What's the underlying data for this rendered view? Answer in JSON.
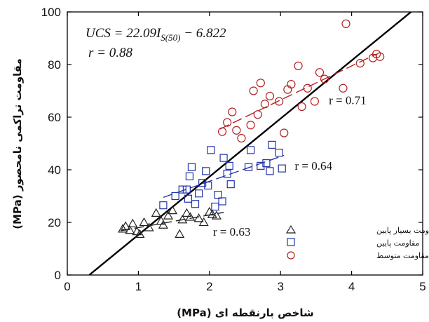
{
  "chart_data": {
    "type": "scatter",
    "xlabel": "شاخص بارنقطه ای (MPa)",
    "ylabel": "مقاومت تراکمی نامحصور (MPa)",
    "xlim": [
      0,
      5
    ],
    "ylim": [
      0,
      100
    ],
    "xticks": [
      "0",
      "1",
      "2",
      "3",
      "4",
      "5"
    ],
    "yticks": [
      "0",
      "20",
      "40",
      "60",
      "80",
      "100"
    ],
    "grid": false,
    "legend_position": "bottom-right",
    "annotation": {
      "equation_lhs": "UCS = 22.09I",
      "equation_sub": "S(50)",
      "equation_rhs": " − 6.822",
      "r_overall": "r = 0.88"
    },
    "overall_fit": {
      "slope": 22.09,
      "intercept": -6.822,
      "x_range": [
        0.31,
        4.85
      ]
    },
    "series": [
      {
        "name": "مقاومت بسیار پایین",
        "marker": "triangle",
        "color": "#222222",
        "fit_color": "#222222",
        "r_label": "r = 0.63",
        "fit": {
          "x": [
            0.75,
            2.2
          ],
          "y": [
            16.8,
            23.8
          ]
        },
        "label_pos": {
          "x": 2.05,
          "y": 15
        },
        "points": [
          [
            0.78,
            17.5
          ],
          [
            0.82,
            18.5
          ],
          [
            0.88,
            17.0
          ],
          [
            0.92,
            19.5
          ],
          [
            0.98,
            16.5
          ],
          [
            1.02,
            15.5
          ],
          [
            1.08,
            20.0
          ],
          [
            1.15,
            18.0
          ],
          [
            1.25,
            23.5
          ],
          [
            1.32,
            20.5
          ],
          [
            1.35,
            19.0
          ],
          [
            1.42,
            22.5
          ],
          [
            1.48,
            24.5
          ],
          [
            1.58,
            15.5
          ],
          [
            1.62,
            21.0
          ],
          [
            1.68,
            23.5
          ],
          [
            1.73,
            22.0
          ],
          [
            1.85,
            21.5
          ],
          [
            1.92,
            20.0
          ],
          [
            2.0,
            24.0
          ],
          [
            2.04,
            23.0
          ],
          [
            2.1,
            22.5
          ]
        ]
      },
      {
        "name": "مقاومت پایین",
        "marker": "square",
        "color": "#2233aa",
        "fit_color": "#2233aa",
        "r_label": "r = 0.64",
        "fit": {
          "x": [
            1.35,
            3.05
          ],
          "y": [
            29.5,
            45.5
          ]
        },
        "label_pos": {
          "x": 3.2,
          "y": 40
        },
        "points": [
          [
            1.35,
            26.5
          ],
          [
            1.52,
            30.0
          ],
          [
            1.62,
            32.5
          ],
          [
            1.68,
            32.5
          ],
          [
            1.7,
            29.0
          ],
          [
            1.72,
            37.5
          ],
          [
            1.75,
            41.0
          ],
          [
            1.8,
            27.0
          ],
          [
            1.85,
            31.0
          ],
          [
            1.9,
            35.0
          ],
          [
            1.95,
            39.5
          ],
          [
            1.98,
            34.0
          ],
          [
            2.02,
            47.5
          ],
          [
            2.08,
            26.0
          ],
          [
            2.12,
            30.5
          ],
          [
            2.18,
            28.0
          ],
          [
            2.2,
            44.5
          ],
          [
            2.25,
            38.5
          ],
          [
            2.28,
            41.5
          ],
          [
            2.3,
            34.5
          ],
          [
            2.55,
            41.0
          ],
          [
            2.58,
            47.5
          ],
          [
            2.72,
            41.5
          ],
          [
            2.8,
            42.5
          ],
          [
            2.85,
            39.5
          ],
          [
            2.88,
            49.5
          ],
          [
            2.98,
            46.5
          ],
          [
            3.02,
            40.5
          ]
        ]
      },
      {
        "name": "مقاومت متوسط",
        "marker": "circle",
        "color": "#b22222",
        "fit_color": "#b22222",
        "r_label": "r = 0.71",
        "fit": {
          "x": [
            2.15,
            4.35
          ],
          "y": [
            55.5,
            84.0
          ]
        },
        "label_pos": {
          "x": 3.68,
          "y": 65
        },
        "points": [
          [
            2.18,
            54.5
          ],
          [
            2.25,
            58.0
          ],
          [
            2.32,
            62.0
          ],
          [
            2.38,
            55.0
          ],
          [
            2.45,
            52.0
          ],
          [
            2.58,
            57.0
          ],
          [
            2.62,
            70.0
          ],
          [
            2.68,
            61.0
          ],
          [
            2.72,
            73.0
          ],
          [
            2.78,
            65.0
          ],
          [
            2.85,
            68.0
          ],
          [
            2.98,
            66.0
          ],
          [
            3.05,
            54.0
          ],
          [
            3.1,
            70.5
          ],
          [
            3.15,
            72.5
          ],
          [
            3.25,
            79.5
          ],
          [
            3.3,
            64.0
          ],
          [
            3.38,
            71.0
          ],
          [
            3.48,
            66.0
          ],
          [
            3.55,
            77.0
          ],
          [
            3.62,
            74.5
          ],
          [
            3.88,
            71.0
          ],
          [
            3.92,
            95.5
          ],
          [
            4.12,
            80.5
          ],
          [
            4.3,
            82.5
          ],
          [
            4.35,
            84.0
          ],
          [
            4.4,
            83.0
          ]
        ]
      }
    ]
  }
}
